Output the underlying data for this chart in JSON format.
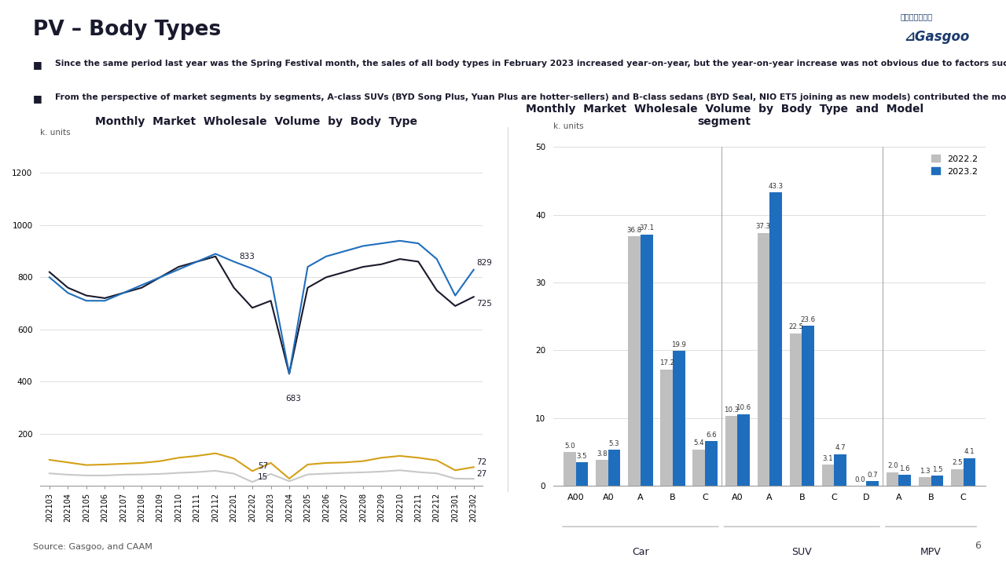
{
  "title": "PV – Body Types",
  "bullet1": "Since the same period last year was the Spring Festival month, the sales of all body types in February 2023 increased year-on-year, but the year-on-year increase was not obvious due to factors such as the withdrawal of policies at the end of 2022, pre-consumption and weak consumption in 2023;",
  "bullet2": "From the perspective of market segments by segments, A-class SUVs (BYD Song Plus, Yuan Plus are hotter-sellers) and B-class sedans (BYD Seal, NIO ET5 joining as new models) contributed the most to the year-on-year growth.",
  "line_chart_title": "Monthly  Market  Wholesale  Volume  by  Body  Type",
  "bar_chart_title": "Monthly  Market  Wholesale  Volume  by  Body  Type  and  Model\nsegment",
  "source": "Source: Gasgoo, and CAAM",
  "page_num": "6",
  "y_label_line": "k. units",
  "y_label_bar": "k. units",
  "x_ticks_line": [
    "202103",
    "202104",
    "202105",
    "202106",
    "202107",
    "202108",
    "202109",
    "202110",
    "202111",
    "202112",
    "202201",
    "202202",
    "202203",
    "202204",
    "202205",
    "202206",
    "202207",
    "202208",
    "202209",
    "202210",
    "202211",
    "202212",
    "202301",
    "202302"
  ],
  "car_data": [
    820,
    760,
    730,
    720,
    740,
    760,
    800,
    840,
    860,
    880,
    760,
    683,
    710,
    430,
    760,
    800,
    820,
    840,
    850,
    870,
    860,
    750,
    690,
    725
  ],
  "suv_data": [
    800,
    740,
    710,
    710,
    740,
    770,
    800,
    830,
    860,
    890,
    860,
    833,
    800,
    430,
    840,
    880,
    900,
    920,
    930,
    940,
    930,
    870,
    730,
    829
  ],
  "mpv_data": [
    100,
    90,
    80,
    82,
    85,
    88,
    95,
    108,
    115,
    125,
    105,
    57,
    88,
    28,
    82,
    88,
    90,
    95,
    108,
    115,
    108,
    98,
    60,
    72
  ],
  "van_data": [
    48,
    43,
    40,
    40,
    43,
    44,
    46,
    50,
    53,
    58,
    47,
    15,
    46,
    18,
    44,
    47,
    50,
    52,
    55,
    60,
    53,
    48,
    28,
    27
  ],
  "car_color": "#1a1a2e",
  "suv_color": "#1f6ebd",
  "mpv_color": "#d4a017",
  "van_color": "#c8c8c8",
  "ylim_line": [
    0,
    1300
  ],
  "yticks_line": [
    0,
    200,
    400,
    600,
    800,
    1000,
    1200
  ],
  "bar_categories": [
    "A00",
    "A0",
    "A",
    "B",
    "C",
    "A0",
    "A",
    "B",
    "C",
    "D",
    "A",
    "B",
    "C"
  ],
  "bar_2022": [
    5.0,
    3.8,
    36.8,
    17.2,
    5.4,
    10.3,
    37.3,
    22.5,
    3.1,
    0.0,
    2.0,
    1.3,
    2.5
  ],
  "bar_2023": [
    3.5,
    5.3,
    37.1,
    19.9,
    6.6,
    10.6,
    43.3,
    23.6,
    4.7,
    0.7,
    1.6,
    1.5,
    4.1
  ],
  "bar_color_2022": "#bfbfbf",
  "bar_color_2023": "#1f6ebd",
  "legend_2022": "2022.2",
  "legend_2023": "2023.2",
  "ylim_bar": [
    0,
    50
  ],
  "yticks_bar": [
    0,
    10,
    20,
    30,
    40,
    50
  ]
}
